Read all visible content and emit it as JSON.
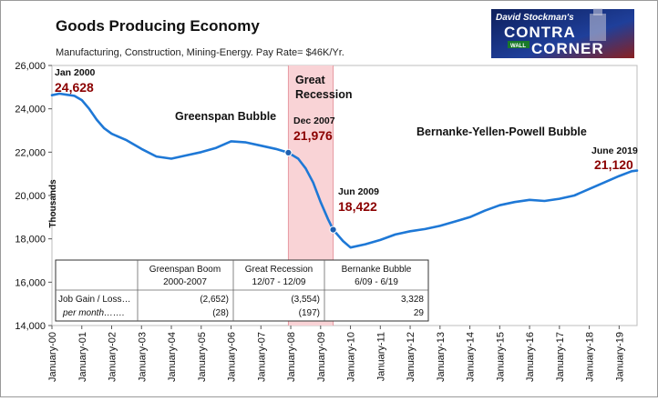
{
  "chart_data": {
    "type": "line",
    "title": "Goods Producing Economy",
    "subtitle": "Manufacturing, Construction, Mining-Energy.  Pay Rate= $46K/Yr.",
    "ylabel": "Thousands",
    "xlabel": "",
    "ylim": [
      14000,
      26000
    ],
    "y_ticks": [
      "14,000",
      "16,000",
      "18,000",
      "20,000",
      "22,000",
      "24,000",
      "26,000"
    ],
    "x_ticks": [
      "January-00",
      "January-01",
      "January-02",
      "January-03",
      "January-04",
      "January-05",
      "January-06",
      "January-07",
      "January-08",
      "January-09",
      "January-10",
      "January-11",
      "January-12",
      "January-13",
      "January-14",
      "January-15",
      "January-16",
      "January-17",
      "January-18",
      "January-19"
    ],
    "x_range": [
      2000.0,
      2019.6
    ],
    "line_color": "#1e78d6",
    "series": [
      {
        "x": [
          2000.0,
          2000.25,
          2000.5,
          2000.75,
          2001.0,
          2001.25,
          2001.5,
          2001.75,
          2002.0,
          2002.5,
          2003.0,
          2003.5,
          2004.0,
          2004.5,
          2005.0,
          2005.5,
          2006.0,
          2006.5,
          2007.0,
          2007.5,
          2007.92,
          2008.25,
          2008.5,
          2008.75,
          2009.0,
          2009.25,
          2009.42,
          2009.75,
          2010.0,
          2010.5,
          2011.0,
          2011.5,
          2012.0,
          2012.5,
          2013.0,
          2013.5,
          2014.0,
          2014.5,
          2015.0,
          2015.5,
          2016.0,
          2016.5,
          2017.0,
          2017.5,
          2018.0,
          2018.5,
          2019.0,
          2019.42,
          2019.6
        ],
        "values": [
          24628,
          24700,
          24650,
          24600,
          24400,
          24000,
          23500,
          23100,
          22850,
          22550,
          22150,
          21800,
          21700,
          21850,
          22000,
          22200,
          22500,
          22450,
          22300,
          22150,
          21976,
          21700,
          21250,
          20600,
          19700,
          18900,
          18422,
          17900,
          17600,
          17750,
          17950,
          18200,
          18350,
          18450,
          18600,
          18800,
          19000,
          19300,
          19550,
          19700,
          19800,
          19750,
          19850,
          20000,
          20300,
          20600,
          20900,
          21120,
          21150
        ]
      }
    ],
    "recession_band": {
      "label": "Great Recession",
      "x_start": 2007.92,
      "x_end": 2009.42,
      "color": "#f9d3d6"
    },
    "markers": [
      {
        "x": 2007.92,
        "y": 21976,
        "date": "Dec 2007",
        "value": "21,976"
      },
      {
        "x": 2009.42,
        "y": 18422,
        "date": "Jun 2009",
        "value": "18,422"
      }
    ],
    "labels": {
      "start_date": "Jan 2000",
      "start_value": "24,628",
      "end_date": "June 2019",
      "end_value": "21,120",
      "recession_l1": "Great",
      "recession_l2": "Recession",
      "greenspan": "Greenspan Bubble",
      "bernanke": "Bernanke-Yellen-Powell Bubble"
    },
    "table": {
      "columns": [
        {
          "l1": "Greenspan Boom",
          "l2": "2000-2007"
        },
        {
          "l1": "Great Recession",
          "l2": "12/07 - 12/09"
        },
        {
          "l1": "Bernanke Bubble",
          "l2": "6/09 - 6/19"
        }
      ],
      "rows": [
        {
          "label": "Job Gain / Loss…",
          "values": [
            "(2,652)",
            "(3,554)",
            "3,328"
          ]
        },
        {
          "label": "per month…….",
          "values": [
            "(28)",
            "(197)",
            "29"
          ]
        }
      ]
    }
  },
  "logo": {
    "line1": "David Stockman's",
    "line2": "CONTRA",
    "line3": "CORNER",
    "sign": "WALL"
  }
}
